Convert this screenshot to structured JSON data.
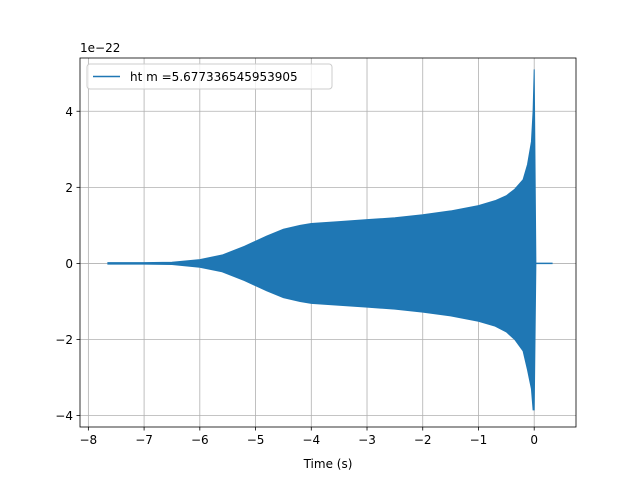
{
  "chart_data": {
    "type": "line",
    "xlabel": "Time (s)",
    "ylabel": "",
    "y_offset_label": "1e−22",
    "xlim": [
      -8.15,
      0.75
    ],
    "ylim": [
      -4.3,
      5.4
    ],
    "x_ticks": [
      -8,
      -7,
      -6,
      -5,
      -4,
      -3,
      -2,
      -1,
      0
    ],
    "x_tick_labels": [
      "−8",
      "−7",
      "−6",
      "−5",
      "−4",
      "−3",
      "−2",
      "−1",
      "0"
    ],
    "y_ticks": [
      -4,
      -2,
      0,
      2,
      4
    ],
    "y_tick_labels": [
      "−4",
      "−2",
      "0",
      "2",
      "4"
    ],
    "grid": true,
    "legend_position": "upper-left",
    "series": [
      {
        "name": "ht m =5.677336545953905",
        "color": "#1f77b4",
        "x_range": [
          -7.65,
          0.33
        ],
        "envelope": {
          "t": [
            -7.65,
            -7.0,
            -6.5,
            -6.0,
            -5.6,
            -5.2,
            -4.8,
            -4.5,
            -4.2,
            -4.0,
            -3.5,
            -3.0,
            -2.5,
            -2.0,
            -1.5,
            -1.0,
            -0.7,
            -0.5,
            -0.35,
            -0.2,
            -0.12,
            -0.05,
            -0.02,
            0.0,
            0.03
          ],
          "upper": [
            0.02,
            0.02,
            0.03,
            0.1,
            0.22,
            0.45,
            0.72,
            0.9,
            1.0,
            1.05,
            1.1,
            1.15,
            1.2,
            1.28,
            1.38,
            1.52,
            1.65,
            1.78,
            1.95,
            2.2,
            2.6,
            3.2,
            4.0,
            5.1,
            0.03
          ],
          "lower": [
            -0.02,
            -0.02,
            -0.03,
            -0.1,
            -0.22,
            -0.45,
            -0.72,
            -0.9,
            -1.0,
            -1.05,
            -1.1,
            -1.15,
            -1.2,
            -1.28,
            -1.38,
            -1.52,
            -1.65,
            -1.8,
            -2.0,
            -2.3,
            -2.8,
            -3.3,
            -3.85,
            -3.85,
            -0.03
          ]
        },
        "tail": {
          "x": [
            0.03,
            0.33
          ],
          "y": [
            0.0,
            0.0
          ]
        }
      }
    ]
  }
}
